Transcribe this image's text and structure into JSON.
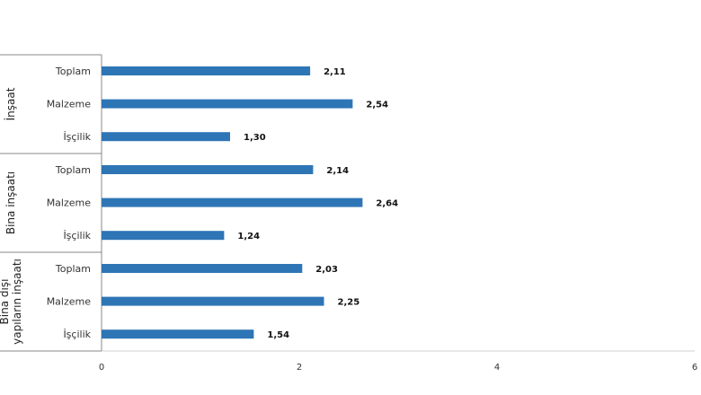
{
  "chart_data": {
    "type": "bar",
    "orientation": "horizontal",
    "groups": [
      {
        "label_lines": [
          "İnşaat"
        ],
        "items": [
          {
            "category": "Toplam",
            "value": 2.11,
            "label": "2,11"
          },
          {
            "category": "Malzeme",
            "value": 2.54,
            "label": "2,54"
          },
          {
            "category": "İşçilik",
            "value": 1.3,
            "label": "1,30"
          }
        ]
      },
      {
        "label_lines": [
          "Bina inşaatı"
        ],
        "items": [
          {
            "category": "Toplam",
            "value": 2.14,
            "label": "2,14"
          },
          {
            "category": "Malzeme",
            "value": 2.64,
            "label": "2,64"
          },
          {
            "category": "İşçilik",
            "value": 1.24,
            "label": "1,24"
          }
        ]
      },
      {
        "label_lines": [
          "Bina dışı",
          "yapıların inşaatı"
        ],
        "items": [
          {
            "category": "Toplam",
            "value": 2.03,
            "label": "2,03"
          },
          {
            "category": "Malzeme",
            "value": 2.25,
            "label": "2,25"
          },
          {
            "category": "İşçilik",
            "value": 1.54,
            "label": "1,54"
          }
        ]
      }
    ],
    "xlim": [
      0,
      6
    ],
    "xticks": [
      {
        "value": 0,
        "label": "0"
      },
      {
        "value": 2,
        "label": "2"
      },
      {
        "value": 4,
        "label": "4"
      },
      {
        "value": 6,
        "label": "6"
      }
    ],
    "grid": false,
    "legend": "none",
    "bar_color": "#2e75b6"
  }
}
